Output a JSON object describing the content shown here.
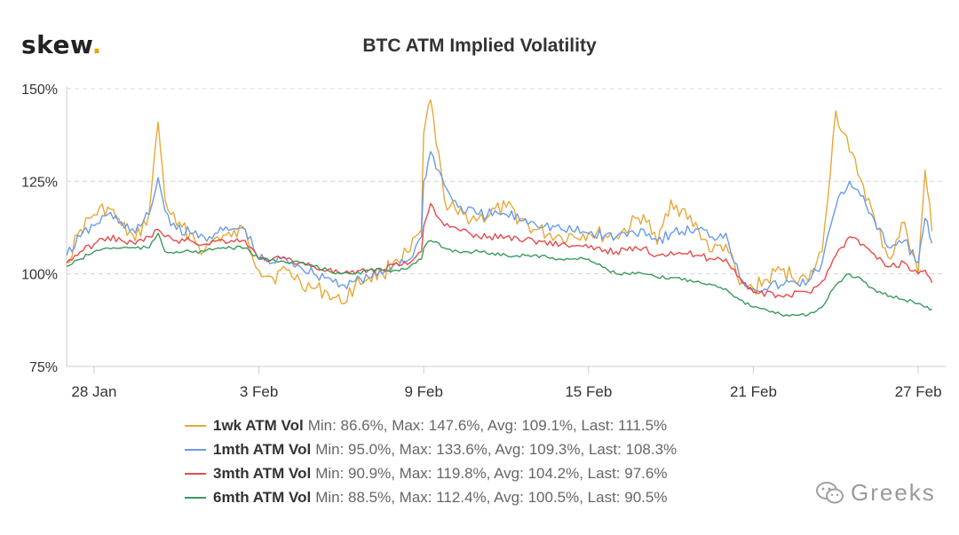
{
  "brand": {
    "logo_text": "skew",
    "logo_dot": ".",
    "accent": "#e8a500"
  },
  "watermark": {
    "text": "Greeks",
    "icon": "wechat-icon"
  },
  "chart_data": {
    "type": "line",
    "title": "BTC ATM Implied Volatility",
    "y_tick_labels": [
      "75%",
      "100%",
      "125%",
      "150%"
    ],
    "y_ticks": [
      75,
      100,
      125,
      150
    ],
    "ylim": [
      75,
      150
    ],
    "x_tick_labels": [
      "28 Jan",
      "3 Feb",
      "9 Feb",
      "15 Feb",
      "21 Feb",
      "27 Feb"
    ],
    "x_ticks": [
      "2020-01-28",
      "2020-02-03",
      "2020-02-09",
      "2020-02-15",
      "2020-02-21",
      "2020-02-27"
    ],
    "xlim": [
      "2020-01-27",
      "2020-02-28"
    ],
    "grid": "horizontal dashed",
    "legend_position": "bottom",
    "series": [
      {
        "name": "1wk ATM Vol",
        "color": "#e8a838",
        "stats": "Min: 86.6%, Max: 147.6%, Avg: 109.1%, Last: 111.5%",
        "x": [
          "2020-01-27T00:00",
          "2020-01-27T12:00",
          "2020-01-28T00:00",
          "2020-01-28T12:00",
          "2020-01-29T00:00",
          "2020-01-29T12:00",
          "2020-01-30T00:00",
          "2020-01-30T08:00",
          "2020-01-30T14:00",
          "2020-01-31T00:00",
          "2020-01-31T12:00",
          "2020-02-01T00:00",
          "2020-02-01T12:00",
          "2020-02-02T00:00",
          "2020-02-02T12:00",
          "2020-02-03T00:00",
          "2020-02-03T12:00",
          "2020-02-04T00:00",
          "2020-02-04T12:00",
          "2020-02-05T00:00",
          "2020-02-05T12:00",
          "2020-02-06T00:00",
          "2020-02-06T12:00",
          "2020-02-07T00:00",
          "2020-02-07T12:00",
          "2020-02-08T00:00",
          "2020-02-08T12:00",
          "2020-02-08T22:00",
          "2020-02-09T00:00",
          "2020-02-09T06:00",
          "2020-02-09T18:00",
          "2020-02-10T06:00",
          "2020-02-11T00:00",
          "2020-02-12T00:00",
          "2020-02-13T00:00",
          "2020-02-14T00:00",
          "2020-02-15T00:00",
          "2020-02-16T00:00",
          "2020-02-17T00:00",
          "2020-02-17T12:00",
          "2020-02-18T00:00",
          "2020-02-19T00:00",
          "2020-02-19T12:00",
          "2020-02-20T00:00",
          "2020-02-20T12:00",
          "2020-02-21T00:00",
          "2020-02-22T00:00",
          "2020-02-23T00:00",
          "2020-02-23T12:00",
          "2020-02-24T00:00",
          "2020-02-24T12:00",
          "2020-02-25T00:00",
          "2020-02-25T12:00",
          "2020-02-26T00:00",
          "2020-02-26T12:00",
          "2020-02-27T00:00",
          "2020-02-27T06:00",
          "2020-02-27T12:00"
        ],
        "values": [
          103,
          112,
          116,
          118,
          113,
          109,
          116,
          141,
          120,
          113,
          111,
          106,
          110,
          110,
          112,
          101,
          99,
          101,
          98,
          96,
          95,
          92,
          97,
          99,
          100,
          104,
          106,
          112,
          138,
          147,
          120,
          116,
          115,
          118,
          112,
          110,
          111,
          110,
          116,
          108,
          120,
          112,
          106,
          108,
          97,
          96,
          101,
          98,
          106,
          144,
          133,
          124,
          112,
          104,
          114,
          100,
          128,
          111.5
        ]
      },
      {
        "name": "1mth ATM Vol",
        "color": "#6a9be8",
        "stats": "Min: 95.0%, Max: 133.6%, Avg: 109.3%, Last: 108.3%",
        "x": [
          "2020-01-27T00:00",
          "2020-01-27T12:00",
          "2020-01-28T00:00",
          "2020-01-28T12:00",
          "2020-01-29T00:00",
          "2020-01-29T12:00",
          "2020-01-30T00:00",
          "2020-01-30T08:00",
          "2020-01-30T14:00",
          "2020-01-31T00:00",
          "2020-01-31T12:00",
          "2020-02-01T00:00",
          "2020-02-01T12:00",
          "2020-02-02T00:00",
          "2020-02-02T12:00",
          "2020-02-03T00:00",
          "2020-02-03T12:00",
          "2020-02-04T00:00",
          "2020-02-04T12:00",
          "2020-02-05T00:00",
          "2020-02-05T12:00",
          "2020-02-06T00:00",
          "2020-02-06T12:00",
          "2020-02-07T00:00",
          "2020-02-07T12:00",
          "2020-02-08T00:00",
          "2020-02-08T12:00",
          "2020-02-08T22:00",
          "2020-02-09T00:00",
          "2020-02-09T06:00",
          "2020-02-09T18:00",
          "2020-02-10T06:00",
          "2020-02-11T00:00",
          "2020-02-12T00:00",
          "2020-02-13T00:00",
          "2020-02-14T00:00",
          "2020-02-15T00:00",
          "2020-02-16T00:00",
          "2020-02-17T00:00",
          "2020-02-17T12:00",
          "2020-02-18T00:00",
          "2020-02-19T00:00",
          "2020-02-19T12:00",
          "2020-02-20T00:00",
          "2020-02-20T12:00",
          "2020-02-21T00:00",
          "2020-02-22T00:00",
          "2020-02-23T00:00",
          "2020-02-23T12:00",
          "2020-02-24T00:00",
          "2020-02-24T12:00",
          "2020-02-25T00:00",
          "2020-02-25T12:00",
          "2020-02-26T00:00",
          "2020-02-26T12:00",
          "2020-02-27T00:00",
          "2020-02-27T06:00",
          "2020-02-27T12:00"
        ],
        "values": [
          105,
          110,
          113,
          116,
          114,
          111,
          116,
          126,
          117,
          112,
          111,
          110,
          111,
          112,
          112,
          104,
          103,
          104,
          102,
          100,
          99,
          97,
          98,
          99,
          100,
          103,
          104,
          110,
          125,
          133,
          124,
          118,
          116,
          116,
          114,
          112,
          111,
          110,
          112,
          109,
          111,
          112,
          110,
          111,
          99,
          96,
          97,
          98,
          103,
          118,
          125,
          121,
          112,
          107,
          109,
          103,
          115,
          108.3
        ]
      },
      {
        "name": "3mth ATM Vol",
        "color": "#e84a4a",
        "stats": "Min: 90.9%, Max: 119.8%, Avg: 104.2%, Last: 97.6%",
        "x": [
          "2020-01-27T00:00",
          "2020-01-27T12:00",
          "2020-01-28T00:00",
          "2020-01-28T12:00",
          "2020-01-29T00:00",
          "2020-01-29T12:00",
          "2020-01-30T00:00",
          "2020-01-30T08:00",
          "2020-01-30T14:00",
          "2020-01-31T00:00",
          "2020-01-31T12:00",
          "2020-02-01T00:00",
          "2020-02-01T12:00",
          "2020-02-02T00:00",
          "2020-02-02T12:00",
          "2020-02-03T00:00",
          "2020-02-03T12:00",
          "2020-02-04T00:00",
          "2020-02-04T12:00",
          "2020-02-05T00:00",
          "2020-02-05T12:00",
          "2020-02-06T00:00",
          "2020-02-06T12:00",
          "2020-02-07T00:00",
          "2020-02-07T12:00",
          "2020-02-08T00:00",
          "2020-02-08T12:00",
          "2020-02-08T22:00",
          "2020-02-09T00:00",
          "2020-02-09T06:00",
          "2020-02-09T18:00",
          "2020-02-10T06:00",
          "2020-02-11T00:00",
          "2020-02-12T00:00",
          "2020-02-13T00:00",
          "2020-02-14T00:00",
          "2020-02-15T00:00",
          "2020-02-16T00:00",
          "2020-02-17T00:00",
          "2020-02-17T12:00",
          "2020-02-18T00:00",
          "2020-02-19T00:00",
          "2020-02-19T12:00",
          "2020-02-20T00:00",
          "2020-02-20T12:00",
          "2020-02-21T00:00",
          "2020-02-22T00:00",
          "2020-02-23T00:00",
          "2020-02-23T12:00",
          "2020-02-24T00:00",
          "2020-02-24T12:00",
          "2020-02-25T00:00",
          "2020-02-25T12:00",
          "2020-02-26T00:00",
          "2020-02-26T12:00",
          "2020-02-27T00:00",
          "2020-02-27T06:00",
          "2020-02-27T12:00"
        ],
        "values": [
          103,
          106,
          108,
          110,
          109,
          108,
          110,
          112,
          110,
          109,
          109,
          108,
          109,
          109,
          109,
          104,
          104,
          104,
          103,
          102,
          101,
          100,
          100,
          101,
          101,
          103,
          103,
          106,
          113,
          119,
          113,
          112,
          110,
          110,
          109,
          108,
          107,
          106,
          107,
          105,
          106,
          105,
          104,
          104,
          99,
          95,
          94,
          95,
          98,
          105,
          110,
          108,
          104,
          102,
          103,
          100,
          101,
          97.6
        ]
      },
      {
        "name": "6mth ATM Vol",
        "color": "#3a9a5c",
        "stats": "Min: 88.5%, Max: 112.4%, Avg: 100.5%, Last: 90.5%",
        "x": [
          "2020-01-27T00:00",
          "2020-01-27T12:00",
          "2020-01-28T00:00",
          "2020-01-28T12:00",
          "2020-01-29T00:00",
          "2020-01-29T12:00",
          "2020-01-30T00:00",
          "2020-01-30T08:00",
          "2020-01-30T14:00",
          "2020-01-31T00:00",
          "2020-01-31T12:00",
          "2020-02-01T00:00",
          "2020-02-01T12:00",
          "2020-02-02T00:00",
          "2020-02-02T12:00",
          "2020-02-03T00:00",
          "2020-02-03T12:00",
          "2020-02-04T00:00",
          "2020-02-04T12:00",
          "2020-02-05T00:00",
          "2020-02-05T12:00",
          "2020-02-06T00:00",
          "2020-02-06T12:00",
          "2020-02-07T00:00",
          "2020-02-07T12:00",
          "2020-02-08T00:00",
          "2020-02-08T12:00",
          "2020-02-08T22:00",
          "2020-02-09T00:00",
          "2020-02-09T06:00",
          "2020-02-09T18:00",
          "2020-02-10T06:00",
          "2020-02-11T00:00",
          "2020-02-12T00:00",
          "2020-02-13T00:00",
          "2020-02-14T00:00",
          "2020-02-15T00:00",
          "2020-02-16T00:00",
          "2020-02-17T00:00",
          "2020-02-17T12:00",
          "2020-02-18T00:00",
          "2020-02-19T00:00",
          "2020-02-19T12:00",
          "2020-02-20T00:00",
          "2020-02-20T12:00",
          "2020-02-21T00:00",
          "2020-02-22T00:00",
          "2020-02-23T00:00",
          "2020-02-23T12:00",
          "2020-02-24T00:00",
          "2020-02-24T12:00",
          "2020-02-25T00:00",
          "2020-02-25T12:00",
          "2020-02-26T00:00",
          "2020-02-26T12:00",
          "2020-02-27T00:00",
          "2020-02-27T06:00",
          "2020-02-27T12:00"
        ],
        "values": [
          102,
          104,
          106,
          107,
          107,
          107,
          107,
          111,
          106,
          106,
          106,
          106,
          107,
          107,
          107,
          104,
          104,
          103,
          103,
          102,
          101,
          100,
          100,
          101,
          101,
          101,
          102,
          104,
          107,
          109,
          107,
          106,
          106,
          105,
          105,
          104,
          104,
          100,
          100,
          99,
          99,
          98,
          97,
          96,
          93,
          91,
          89,
          89,
          91,
          97,
          100,
          98,
          95,
          94,
          93,
          92,
          91,
          90.5
        ]
      }
    ]
  }
}
